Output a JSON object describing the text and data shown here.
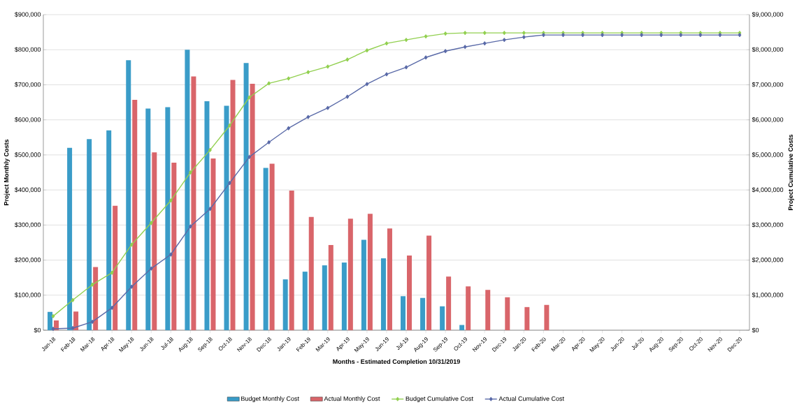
{
  "chart_data": {
    "type": "bar",
    "xlabel": "Months - Estimated Completion 10/31/2019",
    "ylabel": "Project Monthly Costs",
    "y2label": "Project Cumulative Costs",
    "categories": [
      "Jan-18",
      "Feb-18",
      "Mar-18",
      "Apr-18",
      "May-18",
      "Jun-18",
      "Jul-18",
      "Aug-18",
      "Sep-18",
      "Oct-18",
      "Nov-18",
      "Dec-18",
      "Jan-19",
      "Feb-19",
      "Mar-19",
      "Apr-19",
      "May-19",
      "Jun-19",
      "Jul-19",
      "Aug-19",
      "Sep-19",
      "Oct-19",
      "Nov-19",
      "Dec-19",
      "Jan-20",
      "Feb-20",
      "Mar-20",
      "Apr-20",
      "May-20",
      "Jun-20",
      "Jul-20",
      "Aug-20",
      "Sep-20",
      "Oct-20",
      "Nov-20",
      "Dec-20"
    ],
    "series": [
      {
        "name": "Budget Monthly Cost",
        "color": "#3a9cc8",
        "values": [
          52000,
          520000,
          545000,
          570000,
          770000,
          632000,
          636000,
          800000,
          653000,
          640000,
          762000,
          463000,
          145000,
          167000,
          185000,
          193000,
          258000,
          205000,
          97000,
          92000,
          68000,
          15000,
          null,
          null,
          null,
          null,
          null,
          null,
          null,
          null,
          null,
          null,
          null,
          null,
          null,
          null
        ]
      },
      {
        "name": "Actual Monthly Cost",
        "color": "#d9656a",
        "values": [
          28000,
          53000,
          180000,
          355000,
          657000,
          507000,
          478000,
          724000,
          490000,
          714000,
          703000,
          475000,
          398000,
          323000,
          243000,
          318000,
          332000,
          290000,
          213000,
          270000,
          153000,
          125000,
          115000,
          94000,
          66000,
          72000,
          null,
          null,
          null,
          null,
          null,
          null,
          null,
          null,
          null,
          null
        ]
      },
      {
        "name": "Budget Cumulative Cost",
        "type": "line",
        "axis": "y2",
        "color": "#92d050",
        "values": [
          400000,
          860000,
          1300000,
          1640000,
          2440000,
          3060000,
          3700000,
          4500000,
          5140000,
          5840000,
          6640000,
          7040000,
          7180000,
          7360000,
          7520000,
          7720000,
          7980000,
          8180000,
          8280000,
          8380000,
          8460000,
          8480000,
          8480000,
          8480000,
          8480000,
          8480000,
          8480000,
          8480000,
          8480000,
          8480000,
          8480000,
          8480000,
          8480000,
          8480000,
          8480000,
          8480000
        ]
      },
      {
        "name": "Actual Cumulative Cost",
        "type": "line",
        "axis": "y2",
        "color": "#5a6aa8",
        "values": [
          40000,
          60000,
          240000,
          640000,
          1240000,
          1760000,
          2160000,
          2960000,
          3460000,
          4200000,
          4940000,
          5360000,
          5760000,
          6080000,
          6340000,
          6660000,
          7020000,
          7300000,
          7500000,
          7780000,
          7960000,
          8080000,
          8180000,
          8280000,
          8360000,
          8420000,
          8420000,
          8420000,
          8420000,
          8420000,
          8420000,
          8420000,
          8420000,
          8420000,
          8420000,
          8420000
        ]
      }
    ],
    "ylim": [
      0,
      900000
    ],
    "yticks": [
      {
        "value": 0,
        "label": "$0"
      },
      {
        "value": 100000,
        "label": "$100,000"
      },
      {
        "value": 200000,
        "label": "$200,000"
      },
      {
        "value": 300000,
        "label": "$300,000"
      },
      {
        "value": 400000,
        "label": "$400,000"
      },
      {
        "value": 500000,
        "label": "$500,000"
      },
      {
        "value": 600000,
        "label": "$600,000"
      },
      {
        "value": 700000,
        "label": "$700,000"
      },
      {
        "value": 800000,
        "label": "$800,000"
      },
      {
        "value": 900000,
        "label": "$900,000"
      }
    ],
    "y2lim": [
      0,
      9000000
    ],
    "y2ticks": [
      {
        "value": 0,
        "label": "$0"
      },
      {
        "value": 1000000,
        "label": "$1,000,000"
      },
      {
        "value": 2000000,
        "label": "$2,000,000"
      },
      {
        "value": 3000000,
        "label": "$3,000,000"
      },
      {
        "value": 4000000,
        "label": "$4,000,000"
      },
      {
        "value": 5000000,
        "label": "$5,000,000"
      },
      {
        "value": 6000000,
        "label": "$6,000,000"
      },
      {
        "value": 7000000,
        "label": "$7,000,000"
      },
      {
        "value": 8000000,
        "label": "$8,000,000"
      },
      {
        "value": 9000000,
        "label": "$9,000,000"
      }
    ],
    "grid": "y",
    "legend": "bottom",
    "marker": "diamond"
  }
}
